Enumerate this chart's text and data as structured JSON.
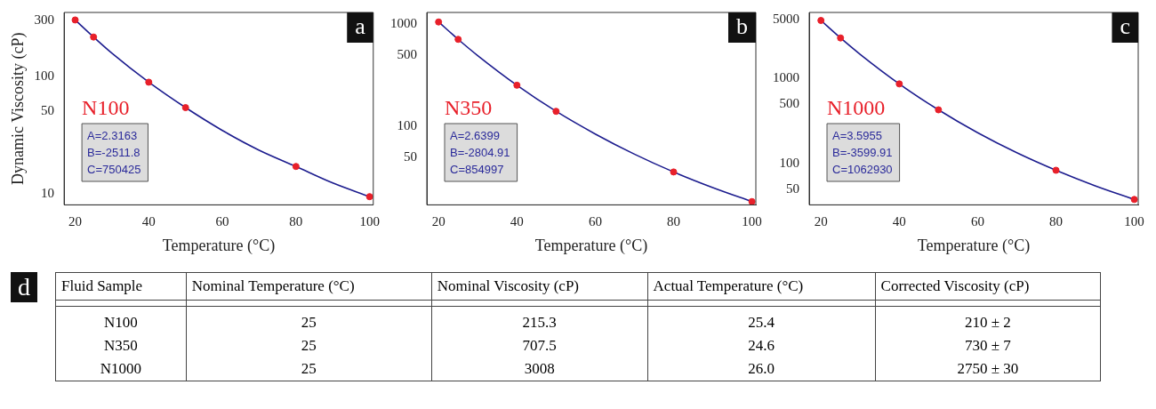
{
  "chart_data": [
    {
      "type": "line",
      "ylabel": "Dynamic Viscosity (cP)",
      "xlabel": "Temperature (°C)",
      "log": "y",
      "grid": false,
      "legend": false,
      "marker": "circle",
      "line_style": "solid",
      "xlim": [
        17,
        101
      ],
      "xticks": [
        20,
        40,
        60,
        80,
        100
      ],
      "ylim": [
        8,
        350
      ],
      "yticks": [
        10,
        50,
        100,
        300
      ],
      "annotations": [
        "a",
        "N100",
        "A=2.3163",
        "B=-2511.8",
        "C=750425"
      ],
      "series": [
        {
          "type": "line",
          "marker": "none",
          "color": "#1c1c8e",
          "x": [
            20,
            25,
            30,
            40,
            50,
            60,
            70,
            80,
            90,
            100
          ],
          "values": [
            302,
            216,
            157,
            89,
            54,
            34.5,
            23.4,
            17,
            12.3,
            9.4
          ]
        },
        {
          "type": "scatter",
          "color": "#e8202a",
          "x": [
            20,
            25,
            40,
            50,
            80,
            100
          ],
          "values": [
            302,
            216,
            89,
            54,
            17,
            9.4
          ]
        }
      ]
    },
    {
      "type": "line",
      "xlabel": "Temperature (°C)",
      "log": "y",
      "grid": false,
      "legend": false,
      "marker": "circle",
      "line_style": "solid",
      "xlim": [
        17,
        101
      ],
      "xticks": [
        20,
        40,
        60,
        80,
        100
      ],
      "ylim": [
        17,
        1300
      ],
      "yticks": [
        50,
        100,
        500,
        1000
      ],
      "annotations": [
        "b",
        "N350",
        "A=2.6399",
        "B=-2804.91",
        "C=854997"
      ],
      "series": [
        {
          "type": "line",
          "marker": "none",
          "color": "#1c1c8e",
          "x": [
            20,
            25,
            30,
            40,
            50,
            60,
            70,
            80,
            90,
            100
          ],
          "values": [
            1049,
            709,
            491,
            252,
            140,
            84,
            53.3,
            35.7,
            25.1,
            18.3
          ]
        },
        {
          "type": "scatter",
          "color": "#e8202a",
          "x": [
            20,
            25,
            40,
            50,
            80,
            100
          ],
          "values": [
            1049,
            709,
            252,
            140,
            35.7,
            18.3
          ]
        }
      ]
    },
    {
      "type": "line",
      "xlabel": "Temperature (°C)",
      "log": "y",
      "grid": false,
      "legend": false,
      "marker": "circle",
      "line_style": "solid",
      "xlim": [
        17,
        101
      ],
      "xticks": [
        20,
        40,
        60,
        80,
        100
      ],
      "ylim": [
        33,
        6000
      ],
      "yticks": [
        50,
        100,
        500,
        1000,
        5000
      ],
      "annotations": [
        "c",
        "N1000",
        "A=3.5955",
        "B=-3599.91",
        "C=1062930"
      ],
      "series": [
        {
          "type": "line",
          "marker": "none",
          "color": "#1c1c8e",
          "x": [
            20,
            25,
            30,
            40,
            50,
            60,
            70,
            80,
            90,
            100
          ],
          "values": [
            4832,
            3011,
            1935,
            869,
            431,
            232,
            135,
            84.1,
            55.3,
            38.2
          ]
        },
        {
          "type": "scatter",
          "color": "#e8202a",
          "x": [
            20,
            25,
            40,
            50,
            80,
            100
          ],
          "values": [
            4832,
            3011,
            869,
            431,
            84.1,
            38.2
          ]
        }
      ]
    },
    {
      "type": "other",
      "title": "d",
      "categories": [
        "Fluid Sample",
        "Nominal Temperature (°C)",
        "Nominal Viscosity (cP)",
        "Actual Temperature (°C)",
        "Corrected Viscosity (cP)"
      ],
      "annotations": [
        "N100",
        "25",
        "215.3",
        "25.4",
        "210 ±  2",
        "N350",
        "25",
        "707.5",
        "24.6",
        "730 ±  7",
        "N1000",
        "25",
        "3008",
        "26.0",
        "2750 ± 30"
      ]
    }
  ]
}
